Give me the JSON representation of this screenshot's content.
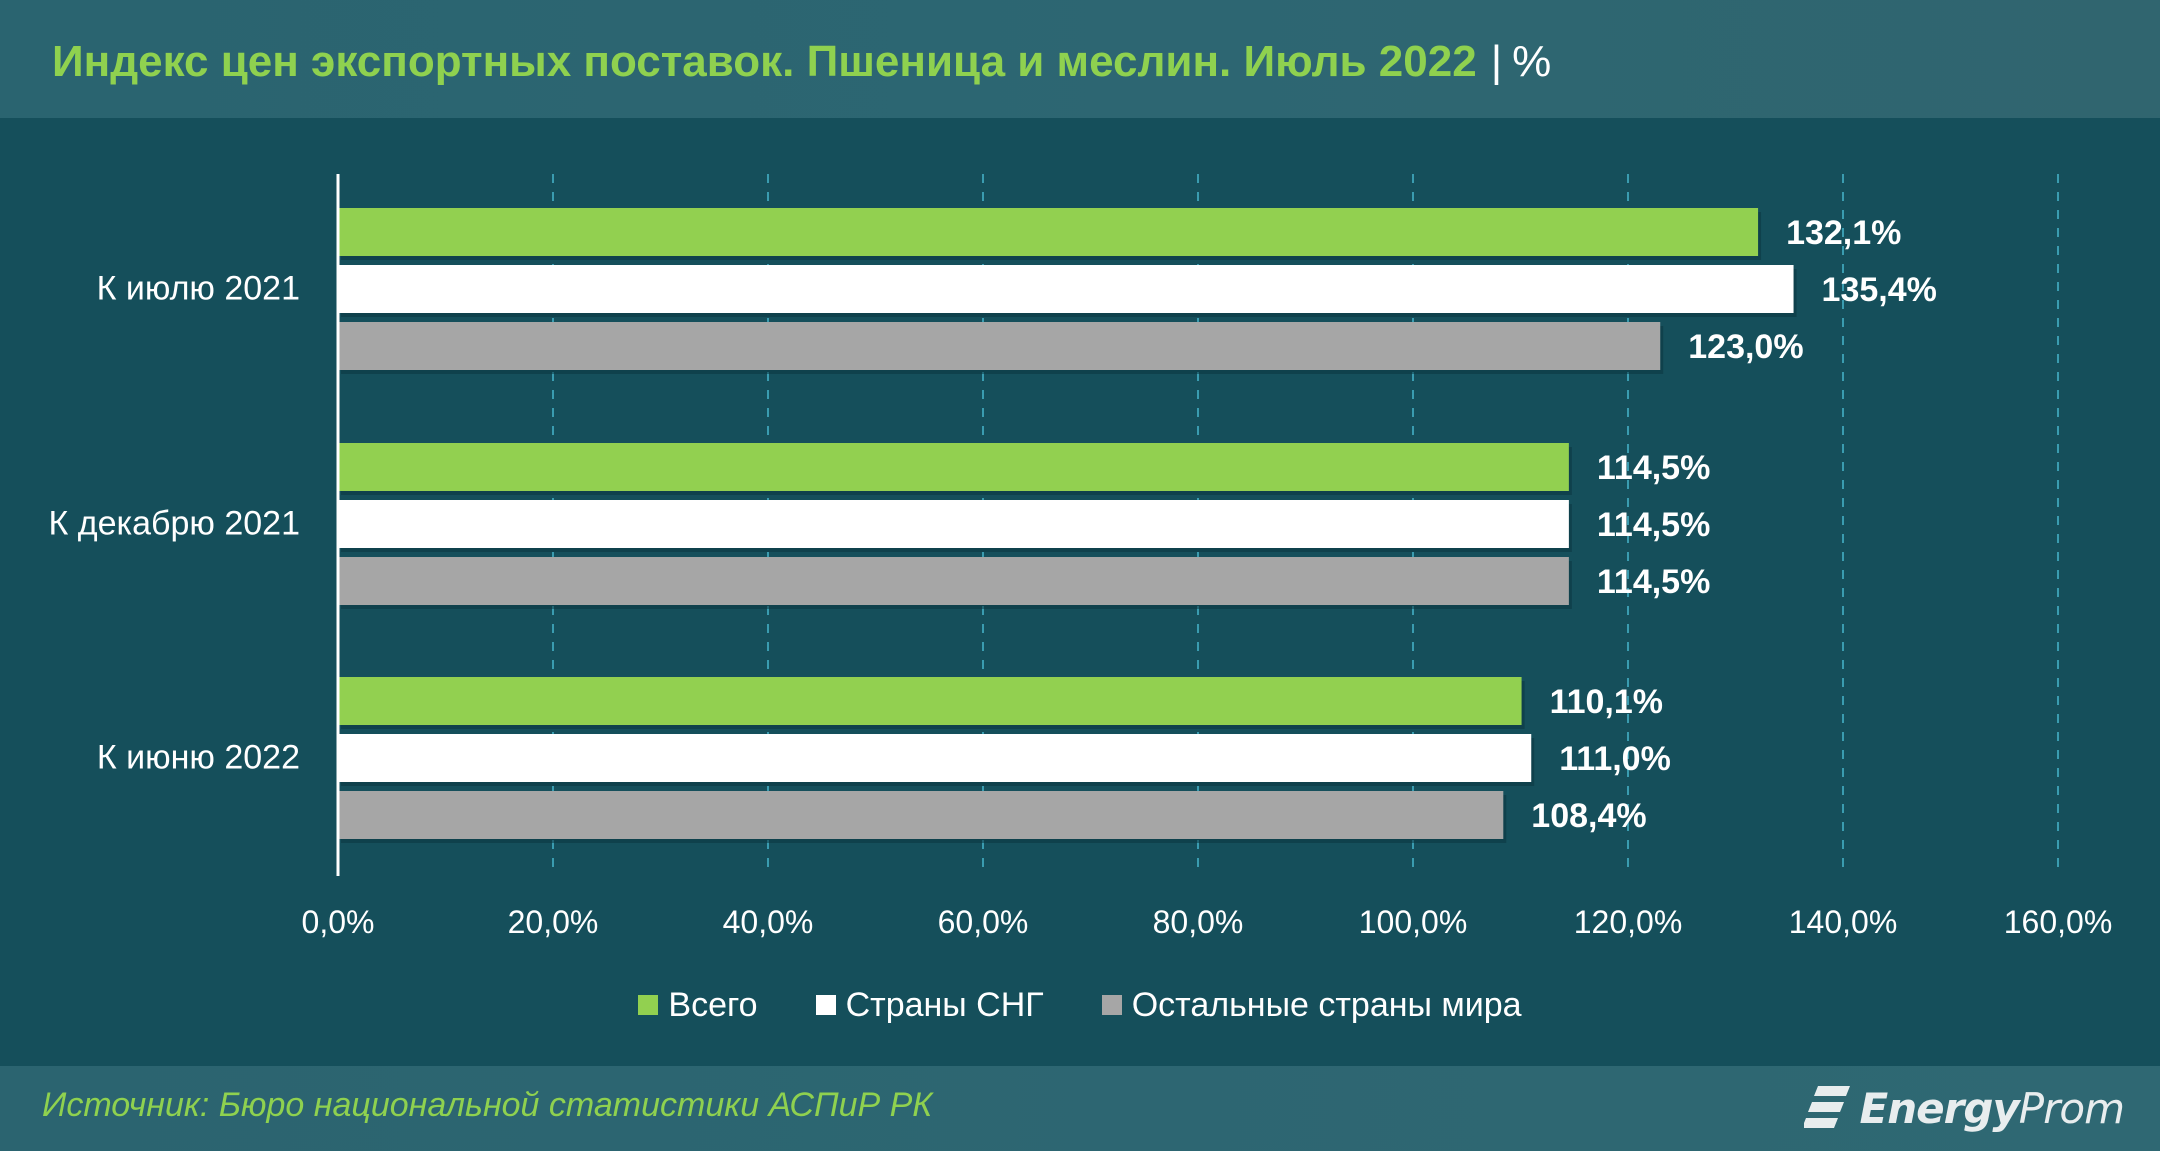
{
  "header": {
    "title": "Индекс цен экспортных поставок. Пшеница и меслин. Июль 2022",
    "separator": "|",
    "unit": "%"
  },
  "chart_data": {
    "type": "bar",
    "orientation": "horizontal",
    "categories": [
      "К июлю 2021",
      "К декабрю 2021",
      "К июню 2022"
    ],
    "series": [
      {
        "name": "Всего",
        "color": "#92d050",
        "values": [
          132.1,
          114.5,
          110.1
        ],
        "labels": [
          "132,1%",
          "114,5%",
          "110,1%"
        ]
      },
      {
        "name": "Страны СНГ",
        "color": "#ffffff",
        "values": [
          135.4,
          114.5,
          111.0
        ],
        "labels": [
          "135,4%",
          "114,5%",
          "111,0%"
        ]
      },
      {
        "name": "Остальные страны мира",
        "color": "#a6a6a6",
        "values": [
          123.0,
          114.5,
          108.4
        ],
        "labels": [
          "123,0%",
          "114,5%",
          "108,4%"
        ]
      }
    ],
    "xlim": [
      0,
      160
    ],
    "x_ticks": [
      0,
      20,
      40,
      60,
      80,
      100,
      120,
      140,
      160
    ],
    "x_tick_labels": [
      "0,0%",
      "20,0%",
      "40,0%",
      "60,0%",
      "80,0%",
      "100,0%",
      "120,0%",
      "140,0%",
      "160,0%"
    ],
    "grid": "vertical dashed",
    "legend_position": "bottom"
  },
  "footer": {
    "source": "Источник: Бюро национальной статистики АСПиР РК",
    "logo_bold": "Energy",
    "logo_regular": "Prom"
  },
  "colors": {
    "background": "#154f5b",
    "title_accent": "#8fd14f",
    "label_text": "#ffffff",
    "gridline": "#3a9cb0"
  }
}
